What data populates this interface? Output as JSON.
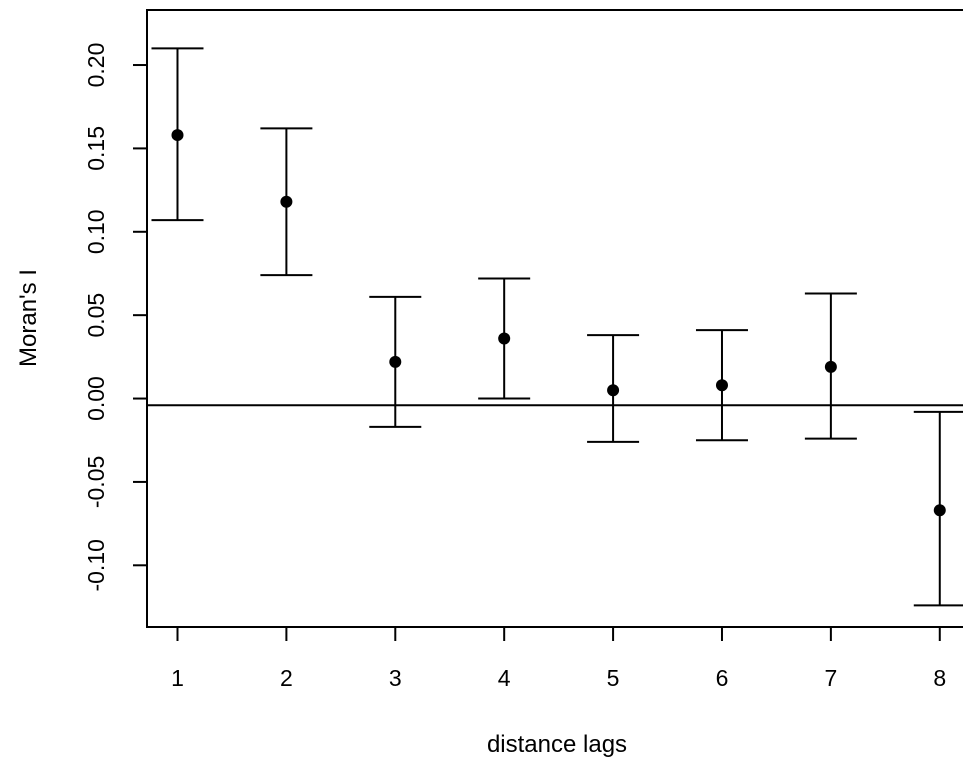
{
  "chart_data": {
    "type": "scatter",
    "xlabel": "distance lags",
    "ylabel": "Moran's I",
    "x": [
      1,
      2,
      3,
      4,
      5,
      6,
      7,
      8
    ],
    "series": [
      {
        "values": [
          0.158,
          0.118,
          0.022,
          0.036,
          0.005,
          0.008,
          0.019,
          -0.067
        ],
        "lower": [
          0.107,
          0.074,
          -0.017,
          0.0,
          -0.026,
          -0.025,
          -0.024,
          -0.124
        ],
        "upper": [
          0.21,
          0.162,
          0.061,
          0.072,
          0.038,
          0.041,
          0.063,
          -0.008
        ]
      }
    ],
    "reference_line": -0.004,
    "xticks": [
      "1",
      "2",
      "3",
      "4",
      "5",
      "6",
      "7",
      "8"
    ],
    "yticks": [
      "-0.10",
      "-0.05",
      "0.00",
      "0.05",
      "0.10",
      "0.15",
      "0.20"
    ],
    "ytick_values": [
      -0.1,
      -0.05,
      0.0,
      0.05,
      0.1,
      0.15,
      0.2
    ],
    "xlim": [
      0.72,
      8.25
    ],
    "ylim": [
      -0.137,
      0.233
    ],
    "grid": false,
    "legend": "none",
    "colors": {
      "marker": "#000000",
      "line": "#000000",
      "background": "#ffffff"
    }
  }
}
